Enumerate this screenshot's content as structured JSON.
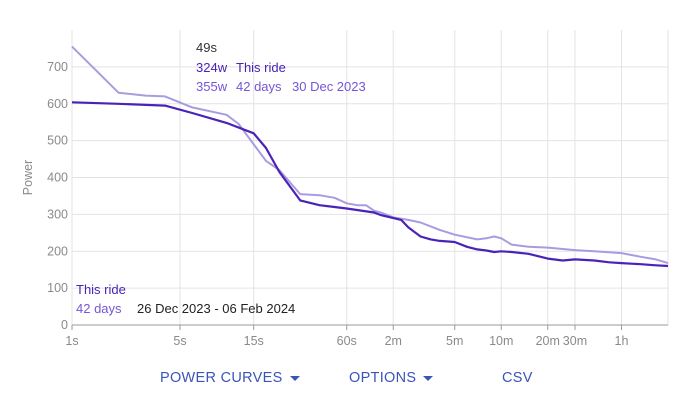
{
  "chart_data": {
    "type": "line",
    "ylabel": "Power",
    "ylim": [
      0,
      800
    ],
    "yticks": [
      0,
      100,
      200,
      300,
      400,
      500,
      600,
      700
    ],
    "x_scale": "log",
    "xlim_seconds": [
      1,
      7200
    ],
    "xticks": [
      {
        "label": "1s",
        "seconds": 1
      },
      {
        "label": "5s",
        "seconds": 5
      },
      {
        "label": "15s",
        "seconds": 15
      },
      {
        "label": "60s",
        "seconds": 60
      },
      {
        "label": "2m",
        "seconds": 120
      },
      {
        "label": "5m",
        "seconds": 300
      },
      {
        "label": "10m",
        "seconds": 600
      },
      {
        "label": "20m",
        "seconds": 1200
      },
      {
        "label": "30m",
        "seconds": 1800
      },
      {
        "label": "1h",
        "seconds": 3600
      }
    ],
    "grid": true,
    "series": [
      {
        "name": "42 days",
        "color": "#a99be0",
        "x": [
          1,
          2,
          3,
          4,
          6,
          10,
          12,
          15,
          18,
          22,
          30,
          40,
          50,
          60,
          70,
          80,
          90,
          100,
          120,
          150,
          180,
          240,
          300,
          420,
          480,
          540,
          600,
          700,
          900,
          1200,
          1500,
          1800,
          2400,
          3600,
          4800,
          6000,
          7200
        ],
        "values": [
          755,
          630,
          622,
          620,
          590,
          570,
          545,
          490,
          445,
          420,
          355,
          352,
          345,
          330,
          325,
          325,
          310,
          305,
          292,
          285,
          278,
          258,
          245,
          232,
          235,
          240,
          235,
          218,
          212,
          210,
          206,
          203,
          200,
          195,
          185,
          178,
          168
        ]
      },
      {
        "name": "This ride",
        "color": "#4a22b8",
        "x": [
          1,
          2,
          4,
          6,
          10,
          15,
          18,
          22,
          30,
          40,
          50,
          60,
          90,
          100,
          120,
          135,
          150,
          180,
          210,
          240,
          300,
          360,
          420,
          480,
          540,
          600,
          700,
          900,
          1200,
          1500,
          1800,
          2400,
          3000,
          3600,
          4800,
          6000,
          7200
        ],
        "values": [
          604,
          600,
          595,
          575,
          548,
          520,
          480,
          415,
          338,
          325,
          320,
          316,
          305,
          298,
          290,
          285,
          265,
          240,
          232,
          228,
          225,
          212,
          205,
          202,
          198,
          200,
          198,
          193,
          180,
          175,
          178,
          175,
          170,
          168,
          165,
          162,
          160
        ]
      }
    ],
    "tooltip": {
      "duration": "49s",
      "this_ride_value": "324w",
      "this_ride_label": "This ride",
      "range_value": "355w",
      "range_label": "42 days",
      "range_date": "30 Dec 2023"
    },
    "legend": {
      "placement": "bottom-left",
      "this_ride_label": "This ride",
      "range_label": "42 days",
      "range_dates": "26 Dec 2023 - 06 Feb 2024"
    }
  },
  "colors": {
    "this_ride": "#4a22b8",
    "range": "#a99be0",
    "grid": "#e3e3e3",
    "action": "#3a55b8"
  },
  "actions": {
    "power_curves": "POWER CURVES",
    "options": "OPTIONS",
    "csv": "CSV"
  }
}
